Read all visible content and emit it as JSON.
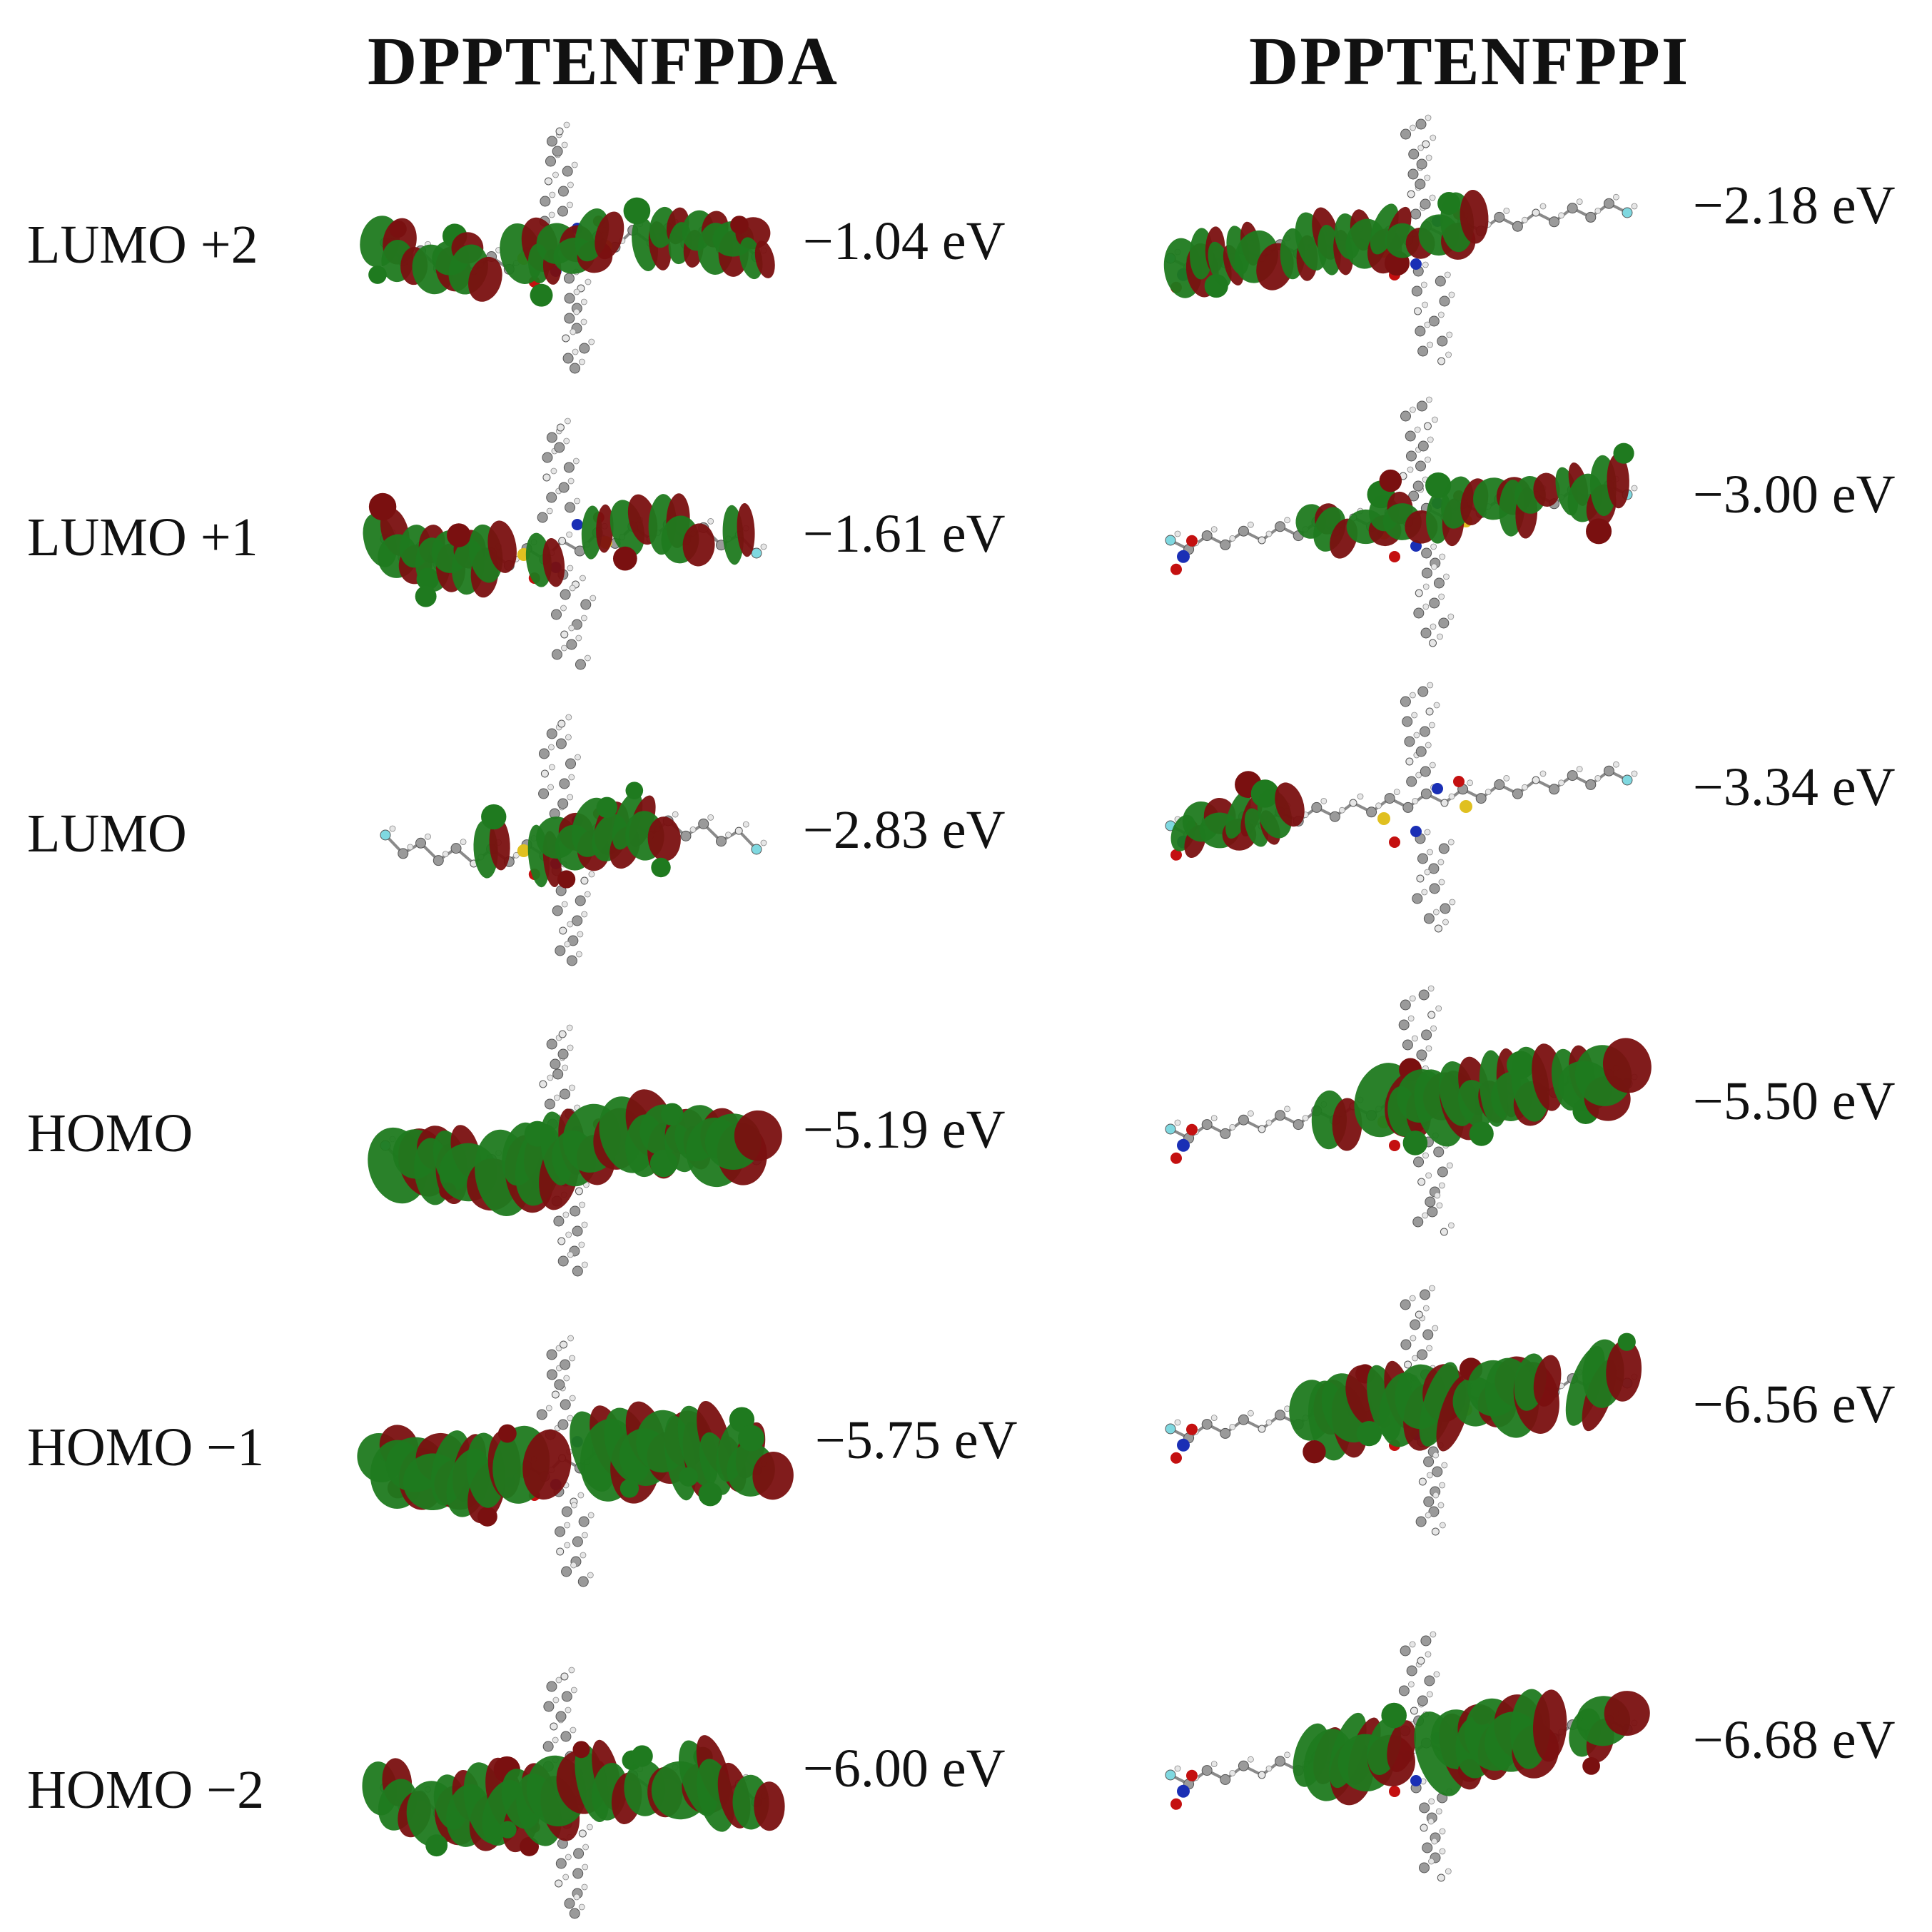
{
  "columns": {
    "left": {
      "title": "DPPTENFPDA"
    },
    "right": {
      "title": "DPPTENFPPI"
    }
  },
  "rows": [
    {
      "orbital": "LUMO +2",
      "left_energy": "−1.04 eV",
      "right_energy": "−2.18 eV"
    },
    {
      "orbital": "LUMO +1",
      "left_energy": "−1.61 eV",
      "right_energy": "−3.00 eV"
    },
    {
      "orbital": "LUMO",
      "left_energy": "−2.83 eV",
      "right_energy": "−3.34 eV"
    },
    {
      "orbital": "HOMO",
      "left_energy": "−5.19 eV",
      "right_energy": "−5.50 eV"
    },
    {
      "orbital": "HOMO −1",
      "left_energy": "−5.75 eV",
      "right_energy": "−6.56 eV"
    },
    {
      "orbital": "HOMO −2",
      "left_energy": "−6.00 eV",
      "right_energy": "−6.68 eV"
    }
  ],
  "colors": {
    "lobe_positive": "#7a1010",
    "lobe_negative": "#1f7a1f",
    "atom_carbon": "#9a9a9a",
    "atom_hydrogen": "#e6e6e6",
    "atom_nitrogen": "#1a2fb5",
    "atom_oxygen": "#c41010",
    "atom_sulfur": "#e0c020",
    "atom_fluorine": "#7fd8e0"
  }
}
